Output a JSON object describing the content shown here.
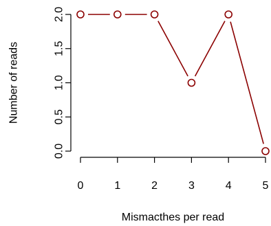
{
  "chart_data": {
    "type": "line",
    "title": "",
    "xlabel": "Mismacthes per read",
    "ylabel": "Number of reads",
    "x": [
      0,
      1,
      2,
      3,
      4,
      5
    ],
    "values": [
      2,
      2,
      2,
      1,
      2,
      0
    ],
    "xlim": [
      0,
      5
    ],
    "ylim": [
      0,
      2
    ],
    "xticks": [
      "0",
      "1",
      "2",
      "3",
      "4",
      "5"
    ],
    "yticks": [
      "0.0",
      "0.5",
      "1.0",
      "1.5",
      "2.0"
    ],
    "series_color": "#8b0000",
    "marker": "open-circle",
    "line_style": "overplotted-points-and-lines",
    "grid": false,
    "frame": "left-and-bottom-axes-only"
  }
}
